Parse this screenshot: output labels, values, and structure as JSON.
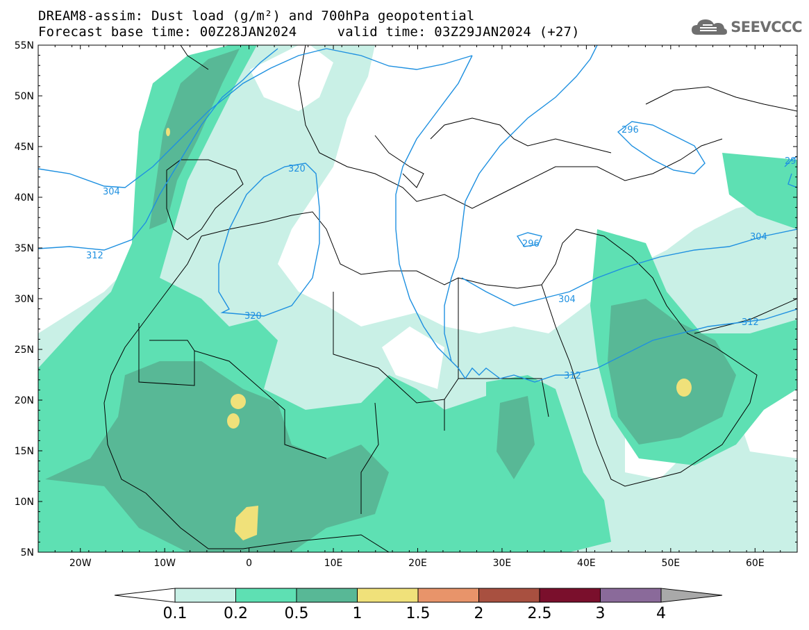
{
  "header": {
    "title_line1": "DREAM8-assim: Dust load (g/m²) and 700hPa geopotential",
    "title_line2": "Forecast base time: 00Z28JAN2024     valid time: 03Z29JAN2024 (+27)",
    "logo_text": "SEEVCCC"
  },
  "map": {
    "lon_range": [
      -25,
      65
    ],
    "lat_range": [
      5,
      55
    ],
    "lat_ticks": [
      "55N",
      "50N",
      "45N",
      "40N",
      "35N",
      "30N",
      "25N",
      "20N",
      "15N",
      "10N",
      "5N"
    ],
    "lon_ticks": [
      "20W",
      "10W",
      "0",
      "10E",
      "20E",
      "30E",
      "40E",
      "50E",
      "60E"
    ]
  },
  "geopotential_contours": {
    "color": "#1e90e0",
    "labels": [
      "296",
      "296",
      "304",
      "304",
      "304",
      "312",
      "312",
      "312",
      "320",
      "320",
      "29"
    ]
  },
  "colorbar": {
    "labels": [
      "0.1",
      "0.2",
      "0.5",
      "1",
      "1.5",
      "2",
      "2.5",
      "3",
      "4"
    ],
    "colors": [
      "#c9f0e6",
      "#5ee0b3",
      "#58b896",
      "#f0e17a",
      "#e8946a",
      "#a85040",
      "#7a0f2c",
      "#8a6a9a",
      "#a9a9a9"
    ]
  }
}
